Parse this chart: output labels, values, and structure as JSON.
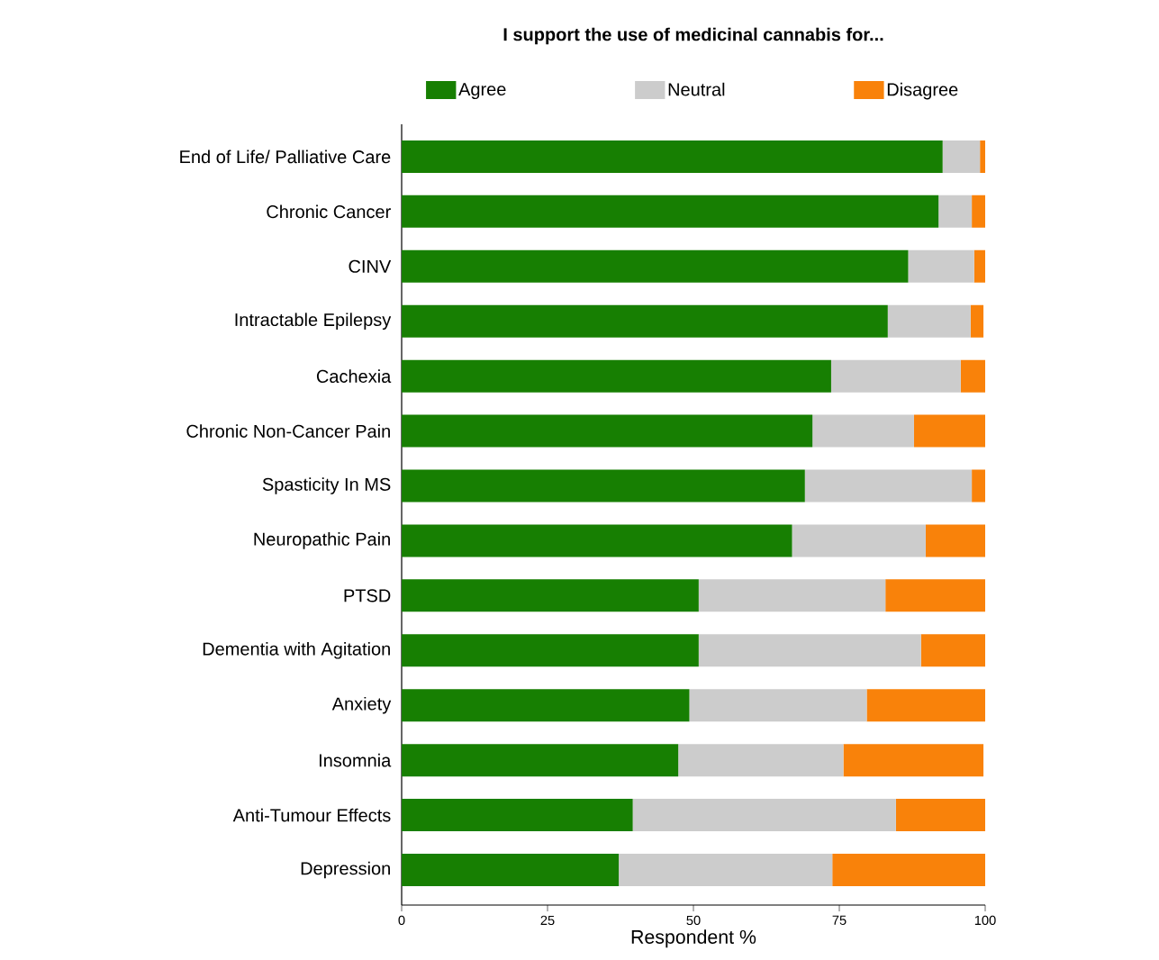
{
  "chart_data": {
    "type": "bar",
    "orientation": "horizontal",
    "stacked": true,
    "title": "I support the use of medicinal cannabis for...",
    "xlabel": "Respondent %",
    "categories": [
      "End of Life/ Palliative Care",
      "Chronic Cancer",
      "CINV",
      "Intractable Epilepsy",
      "Cachexia",
      "Chronic Non-Cancer Pain",
      "Spasticity In MS",
      "Neuropathic Pain",
      "PTSD",
      "Dementia with Agitation",
      "Anxiety",
      "Insomnia",
      "Anti-Tumour Effects",
      "Depression"
    ],
    "series": [
      {
        "name": "Agree",
        "color": "#177f02",
        "values": [
          92.7,
          92.0,
          86.8,
          83.3,
          73.6,
          70.4,
          69.1,
          66.9,
          50.9,
          50.9,
          49.3,
          47.4,
          39.6,
          37.2
        ]
      },
      {
        "name": "Neutral",
        "color": "#cccccc",
        "values": [
          6.4,
          5.7,
          11.3,
          14.2,
          22.2,
          17.4,
          28.6,
          22.9,
          32.0,
          38.1,
          30.4,
          28.3,
          45.1,
          36.6
        ]
      },
      {
        "name": "Disagree",
        "color": "#f9820a",
        "values": [
          0.9,
          2.3,
          1.9,
          2.2,
          4.2,
          12.2,
          2.3,
          10.2,
          17.1,
          11.0,
          20.3,
          24.0,
          15.3,
          26.2
        ]
      }
    ],
    "xlim": [
      0,
      100
    ],
    "xticks": [
      0,
      25,
      50,
      75,
      100
    ],
    "legend": "top"
  }
}
